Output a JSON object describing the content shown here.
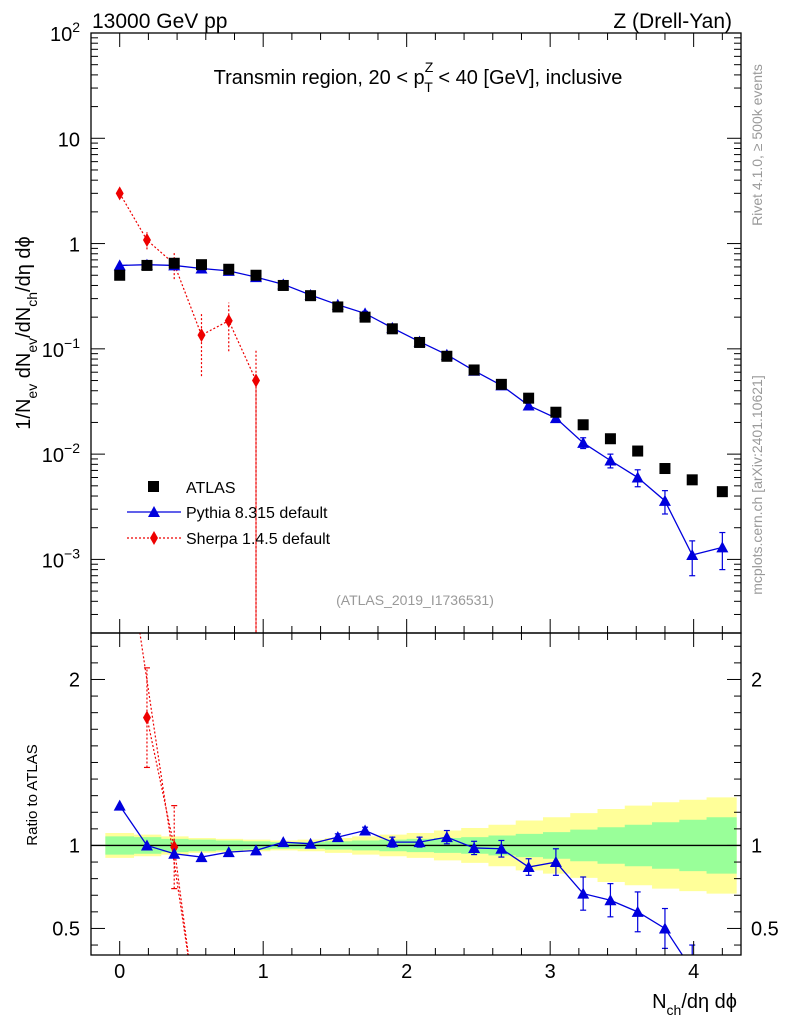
{
  "header": {
    "left": "13000 GeV pp",
    "right": "Z (Drell-Yan)"
  },
  "side": {
    "rivet": "Rivet 4.1.0, ≥ 500k events",
    "mcplots": "mcplots.cern.ch [arXiv:2401.10621]"
  },
  "colors": {
    "atlas": "#000000",
    "pythia": "#0000dd",
    "sherpa": "#ee0000",
    "band_inner": "#99ff99",
    "band_outer": "#ffff99",
    "watermark": "#999999"
  },
  "chart_data": [
    {
      "type": "scatter",
      "panel": "main",
      "title": "Transmin region, 20 < p_T^Z < 40 [GeV], inclusive",
      "title_parts": {
        "pre": "Transmin region, 20 < p",
        "sup": "Z",
        "sub": "T",
        "post": " < 40 [GeV], inclusive"
      },
      "ylabel": "1/N_ev dN_ev/dN_ch/dη dϕ",
      "ylabel_parts": {
        "a": "1/N",
        "a_sub": "ev",
        "b": " dN",
        "b_sub": "ev",
        "c": "/dN",
        "c_sub": "ch",
        "d": "/dη dϕ"
      },
      "yscale": "log",
      "xlim": [
        -0.2,
        4.33
      ],
      "ylim": [
        0.0002,
        100
      ],
      "y_ticks": [
        {
          "v": 0.001,
          "base": "10",
          "exp": "−3"
        },
        {
          "v": 0.01,
          "base": "10",
          "exp": "−2"
        },
        {
          "v": 0.1,
          "base": "10",
          "exp": "−1"
        },
        {
          "v": 1,
          "base": "1",
          "exp": ""
        },
        {
          "v": 10,
          "base": "10",
          "exp": ""
        },
        {
          "v": 100,
          "base": "10",
          "exp": "2"
        }
      ],
      "watermark": "(ATLAS_2019_I1736531)",
      "legend": {
        "position": "bottom-left",
        "entries": [
          "ATLAS",
          "Pythia 8.315 default",
          "Sherpa 1.4.5 default"
        ]
      },
      "series": [
        {
          "name": "ATLAS",
          "marker": "square",
          "x": [
            0.0,
            0.19,
            0.38,
            0.57,
            0.76,
            0.95,
            1.14,
            1.33,
            1.52,
            1.71,
            1.9,
            2.09,
            2.28,
            2.47,
            2.66,
            2.85,
            3.04,
            3.23,
            3.42,
            3.61,
            3.8,
            3.99,
            4.2
          ],
          "y": [
            0.5,
            0.62,
            0.65,
            0.63,
            0.57,
            0.5,
            0.4,
            0.32,
            0.25,
            0.2,
            0.155,
            0.115,
            0.085,
            0.063,
            0.046,
            0.034,
            0.025,
            0.019,
            0.014,
            0.0107,
            0.0073,
            0.0057,
            0.0044
          ]
        },
        {
          "name": "Pythia 8.315 default",
          "marker": "triangle",
          "line": "solid",
          "x": [
            0.0,
            0.19,
            0.38,
            0.57,
            0.76,
            0.95,
            1.14,
            1.33,
            1.52,
            1.71,
            1.9,
            2.09,
            2.28,
            2.47,
            2.66,
            2.85,
            3.04,
            3.23,
            3.42,
            3.61,
            3.8,
            3.99,
            4.2
          ],
          "y": [
            0.62,
            0.63,
            0.62,
            0.58,
            0.55,
            0.48,
            0.41,
            0.325,
            0.262,
            0.217,
            0.158,
            0.117,
            0.088,
            0.062,
            0.045,
            0.029,
            0.022,
            0.0128,
            0.0087,
            0.006,
            0.0036,
            0.0011,
            0.0013
          ],
          "err": [
            0,
            0,
            0,
            0,
            0,
            0,
            0,
            0,
            0,
            0.01,
            0,
            0,
            0.003,
            0,
            0,
            0.002,
            0.0015,
            0.0015,
            0.0013,
            0.0011,
            0.0009,
            0.0004,
            0.0005
          ]
        },
        {
          "name": "Sherpa 1.4.5 default",
          "marker": "diamond",
          "line": "dotted",
          "x": [
            0.0,
            0.19,
            0.38,
            0.57,
            0.76,
            0.95
          ],
          "y": [
            3.0,
            1.08,
            0.64,
            0.135,
            0.185,
            0.05
          ],
          "err_lo": [
            0.35,
            0.2,
            0.18,
            0.08,
            0.09,
            0.0499
          ],
          "err_hi": [
            0.35,
            0.2,
            0.18,
            0.08,
            0.09,
            0.05
          ]
        }
      ]
    },
    {
      "type": "line",
      "panel": "ratio",
      "ylabel": "Ratio to ATLAS",
      "xlabel": "N_ch/dη dϕ",
      "xlabel_parts": {
        "a": "N",
        "sub": "ch",
        "b": "/dη dϕ"
      },
      "xlim": [
        -0.2,
        4.33
      ],
      "ylim": [
        0.34,
        2.28
      ],
      "x_ticks": [
        "0",
        "1",
        "2",
        "3",
        "4"
      ],
      "y_ticks": [
        "0.5",
        "1",
        "2"
      ],
      "band_x": [
        -0.1,
        0.1,
        0.29,
        0.48,
        0.67,
        0.86,
        1.05,
        1.24,
        1.43,
        1.62,
        1.81,
        2.0,
        2.19,
        2.38,
        2.57,
        2.76,
        2.95,
        3.14,
        3.33,
        3.52,
        3.71,
        3.9,
        4.09,
        4.3
      ],
      "band_inner": [
        0.055,
        0.05,
        0.04,
        0.035,
        0.03,
        0.025,
        0.02,
        0.02,
        0.025,
        0.03,
        0.035,
        0.04,
        0.045,
        0.05,
        0.06,
        0.07,
        0.08,
        0.095,
        0.11,
        0.125,
        0.14,
        0.155,
        0.17
      ],
      "band_outer": [
        0.075,
        0.065,
        0.055,
        0.045,
        0.04,
        0.035,
        0.03,
        0.035,
        0.045,
        0.055,
        0.065,
        0.075,
        0.09,
        0.105,
        0.125,
        0.15,
        0.17,
        0.195,
        0.22,
        0.24,
        0.26,
        0.275,
        0.29
      ],
      "series": [
        {
          "name": "Pythia 8.315 default",
          "x": [
            0.0,
            0.19,
            0.38,
            0.57,
            0.76,
            0.95,
            1.14,
            1.33,
            1.52,
            1.71,
            1.9,
            2.09,
            2.28,
            2.47,
            2.66,
            2.85,
            3.04,
            3.23,
            3.42,
            3.61,
            3.8,
            3.99
          ],
          "y": [
            1.24,
            1.0,
            0.95,
            0.93,
            0.96,
            0.97,
            1.02,
            1.01,
            1.05,
            1.09,
            1.02,
            1.02,
            1.05,
            0.985,
            0.98,
            0.87,
            0.9,
            0.71,
            0.67,
            0.6,
            0.5,
            0.25
          ],
          "err": [
            0,
            0,
            0,
            0,
            0,
            0,
            0,
            0,
            0.02,
            0.02,
            0.03,
            0.03,
            0.04,
            0.04,
            0.05,
            0.05,
            0.08,
            0.1,
            0.1,
            0.12,
            0.12,
            0.15
          ]
        },
        {
          "name": "Sherpa 1.4.5 default",
          "x": [
            0.19,
            0.38,
            0.5
          ],
          "y": [
            1.77,
            0.99,
            0.2
          ],
          "err": [
            0.3,
            0.25,
            0
          ]
        }
      ]
    }
  ]
}
